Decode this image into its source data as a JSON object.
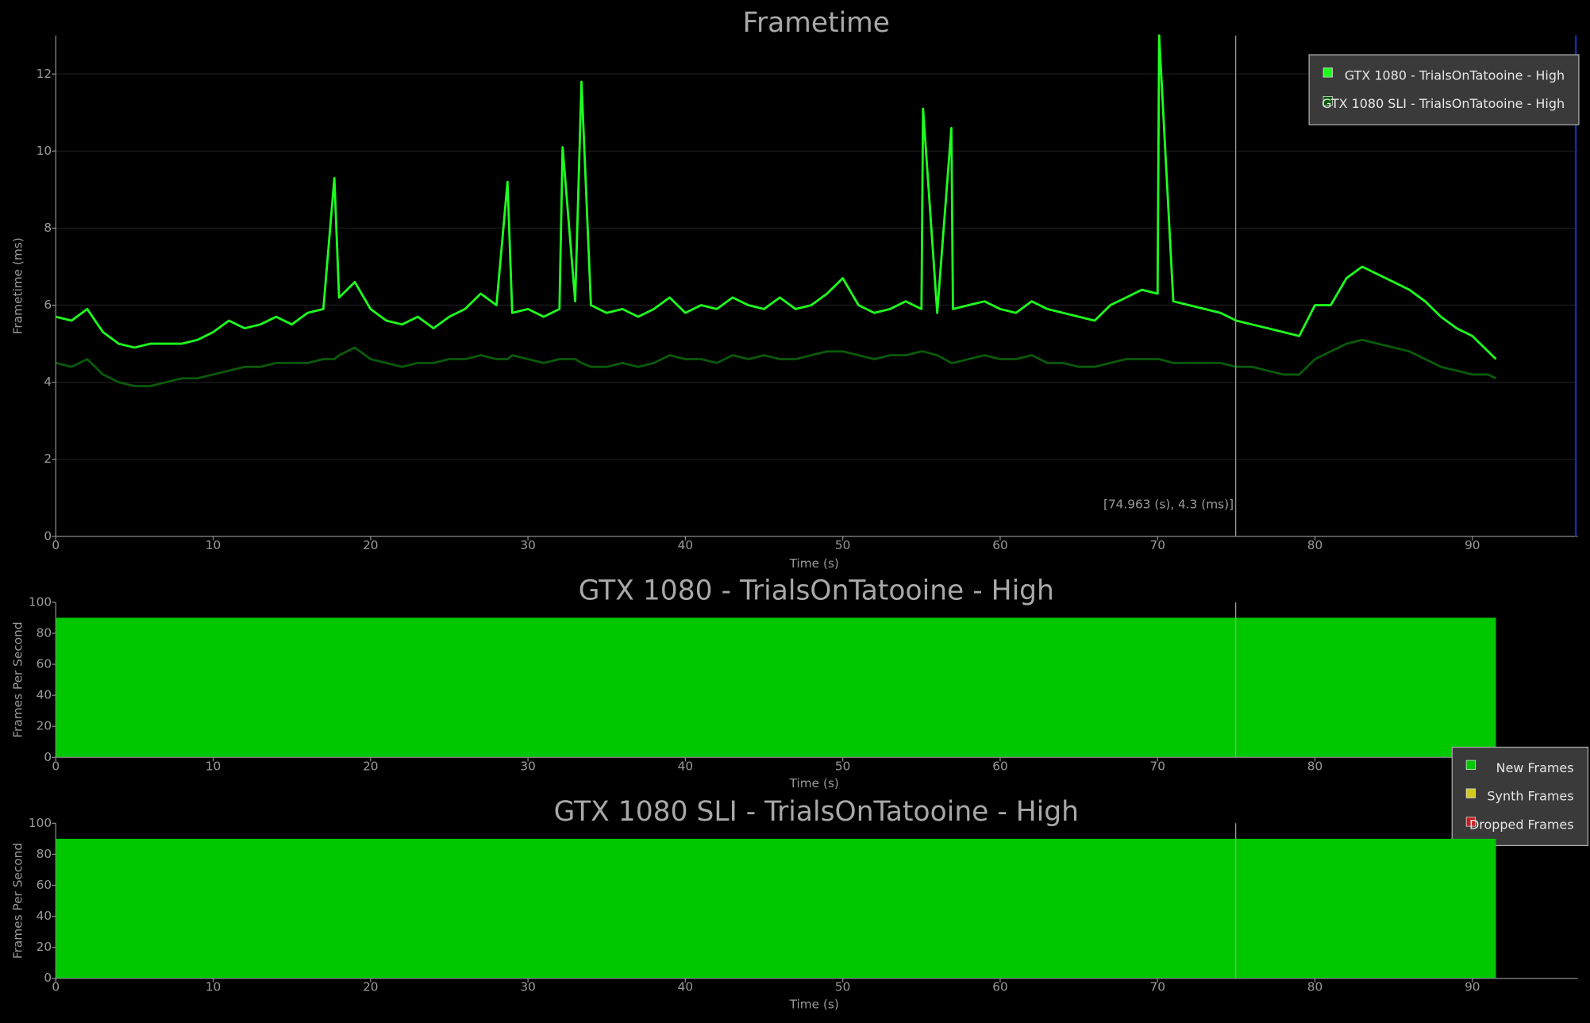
{
  "chart_data": [
    {
      "type": "line",
      "title": "Frametime",
      "x_label": "Time (s)",
      "y_label": "Frametime (ms)",
      "xlim": [
        0,
        96.7
      ],
      "ylim": [
        0,
        13
      ],
      "xticks": [
        0,
        10,
        20,
        30,
        40,
        50,
        60,
        70,
        80,
        90
      ],
      "yticks": [
        0,
        2,
        4,
        6,
        8,
        10,
        12
      ],
      "grid": true,
      "legend": "upper right",
      "cursor": {
        "x": 74.963,
        "label": "[74.963 (s), 4.3 (ms)]"
      },
      "x": [
        0,
        1,
        2,
        3,
        4,
        5,
        6,
        7,
        8,
        9,
        10,
        11,
        12,
        13,
        14,
        15,
        16,
        17,
        17.7,
        18,
        19,
        20,
        21,
        22,
        23,
        24,
        25,
        26,
        27,
        28,
        28.7,
        29,
        30,
        31,
        32,
        32.2,
        33,
        33.4,
        34,
        35,
        36,
        37,
        38,
        39,
        40,
        41,
        42,
        43,
        44,
        45,
        46,
        47,
        48,
        49,
        50,
        51,
        52,
        53,
        54,
        55,
        55.1,
        56,
        56.9,
        57,
        58,
        59,
        60,
        61,
        62,
        63,
        64,
        65,
        66,
        67,
        68,
        69,
        70,
        70.1,
        71,
        72,
        73,
        74,
        75,
        76,
        77,
        78,
        79,
        80,
        81,
        82,
        83,
        84,
        85,
        86,
        87,
        88,
        89,
        90,
        91,
        91.5
      ],
      "series": [
        {
          "name": "GTX 1080 - TrialsOnTatooine - High",
          "color": "#1eff1e",
          "values": [
            5.7,
            5.6,
            5.9,
            5.3,
            5.0,
            4.9,
            5.0,
            5.0,
            5.0,
            5.1,
            5.3,
            5.6,
            5.4,
            5.5,
            5.7,
            5.5,
            5.8,
            5.9,
            9.3,
            6.2,
            6.6,
            5.9,
            5.6,
            5.5,
            5.7,
            5.4,
            5.7,
            5.9,
            6.3,
            6.0,
            9.2,
            5.8,
            5.9,
            5.7,
            5.9,
            10.1,
            6.1,
            11.8,
            6.0,
            5.8,
            5.9,
            5.7,
            5.9,
            6.2,
            5.8,
            6.0,
            5.9,
            6.2,
            6.0,
            5.9,
            6.2,
            5.9,
            6.0,
            6.3,
            6.7,
            6.0,
            5.8,
            5.9,
            6.1,
            5.9,
            11.1,
            5.8,
            10.6,
            5.9,
            6.0,
            6.1,
            5.9,
            5.8,
            6.1,
            5.9,
            5.8,
            5.7,
            5.6,
            6.0,
            6.2,
            6.4,
            6.3,
            13,
            6.1,
            6.0,
            5.9,
            5.8,
            5.6,
            5.5,
            5.4,
            5.3,
            5.2,
            6.0,
            6.0,
            6.7,
            7.0,
            6.8,
            6.6,
            6.4,
            6.1,
            5.7,
            5.4,
            5.2,
            4.8,
            4.6
          ]
        },
        {
          "name": "GTX 1080 SLI - TrialsOnTatooine - High",
          "color": "#0a5a0a",
          "values": [
            4.5,
            4.4,
            4.6,
            4.2,
            4.0,
            3.9,
            3.9,
            4.0,
            4.1,
            4.1,
            4.2,
            4.3,
            4.4,
            4.4,
            4.5,
            4.5,
            4.5,
            4.6,
            4.6,
            4.7,
            4.9,
            4.6,
            4.5,
            4.4,
            4.5,
            4.5,
            4.6,
            4.6,
            4.7,
            4.6,
            4.6,
            4.7,
            4.6,
            4.5,
            4.6,
            4.6,
            4.6,
            4.5,
            4.4,
            4.4,
            4.5,
            4.4,
            4.5,
            4.7,
            4.6,
            4.6,
            4.5,
            4.7,
            4.6,
            4.7,
            4.6,
            4.6,
            4.7,
            4.8,
            4.8,
            4.7,
            4.6,
            4.7,
            4.7,
            4.8,
            4.8,
            4.7,
            4.5,
            4.5,
            4.6,
            4.7,
            4.6,
            4.6,
            4.7,
            4.5,
            4.5,
            4.4,
            4.4,
            4.5,
            4.6,
            4.6,
            4.6,
            4.6,
            4.5,
            4.5,
            4.5,
            4.5,
            4.4,
            4.4,
            4.3,
            4.2,
            4.2,
            4.6,
            4.8,
            5.0,
            5.1,
            5.0,
            4.9,
            4.8,
            4.6,
            4.4,
            4.3,
            4.2,
            4.2,
            4.1
          ]
        }
      ]
    },
    {
      "type": "area",
      "title": "GTX 1080 - TrialsOnTatooine - High",
      "x_label": "Time (s)",
      "y_label": "Frames Per Second",
      "xlim": [
        0,
        96.7
      ],
      "ylim": [
        0,
        100
      ],
      "xticks": [
        0,
        10,
        20,
        30,
        40,
        50,
        60,
        70,
        80,
        90
      ],
      "yticks": [
        0,
        20,
        40,
        60,
        80,
        100
      ],
      "legend": "lower right",
      "cursor": {
        "x": 74.963
      },
      "x": [
        0,
        91.5
      ],
      "series": [
        {
          "name": "New Frames",
          "color": "#00c800",
          "values": [
            90,
            90
          ]
        },
        {
          "name": "Synth Frames",
          "color": "#d2c81e",
          "values": [
            0,
            0
          ]
        },
        {
          "name": "Dropped Frames",
          "color": "#c81e1e",
          "values": [
            0,
            0
          ]
        }
      ]
    },
    {
      "type": "area",
      "title": "GTX 1080 SLI - TrialsOnTatooine - High",
      "x_label": "Time (s)",
      "y_label": "Frames Per Second",
      "xlim": [
        0,
        96.7
      ],
      "ylim": [
        0,
        100
      ],
      "xticks": [
        0,
        10,
        20,
        30,
        40,
        50,
        60,
        70,
        80,
        90
      ],
      "yticks": [
        0,
        20,
        40,
        60,
        80,
        100
      ],
      "cursor": {
        "x": 74.963
      },
      "x": [
        0,
        91.5
      ],
      "series": [
        {
          "color": "#00c800",
          "values": [
            90,
            90
          ]
        }
      ]
    }
  ]
}
